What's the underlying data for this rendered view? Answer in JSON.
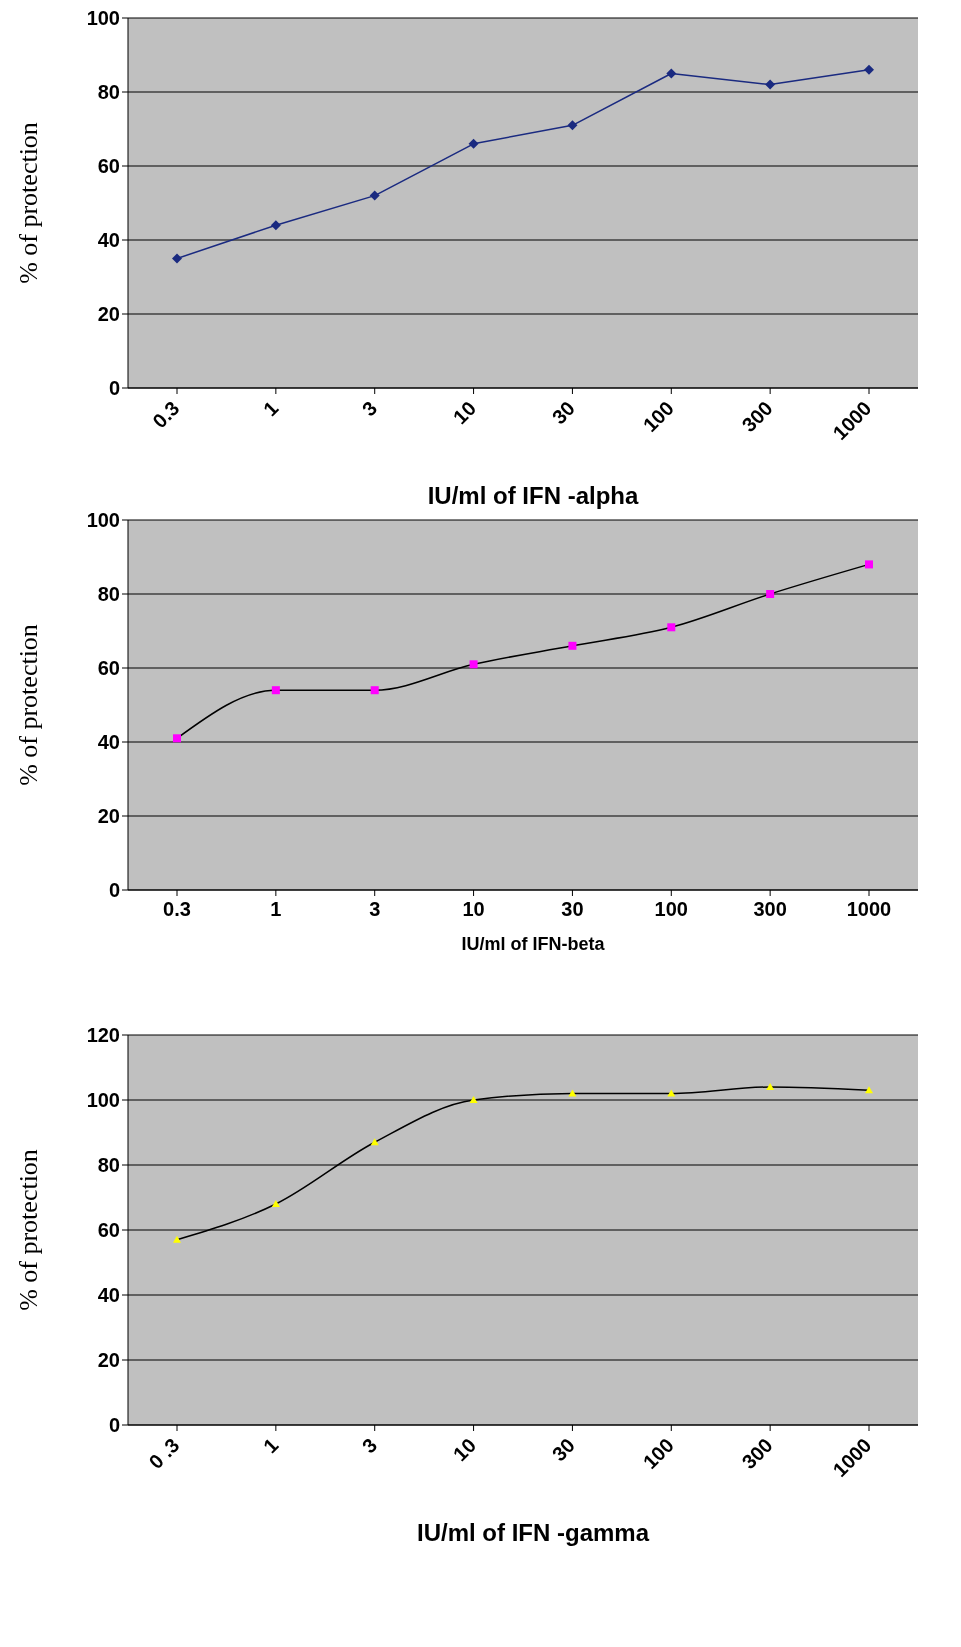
{
  "chart_data": [
    {
      "type": "line",
      "xlabel": "IU/ml of IFN -alpha",
      "ylabel": "% of protection",
      "categories": [
        "0.3",
        "1",
        "3",
        "10",
        "30",
        "100",
        "300",
        "1000"
      ],
      "series": [
        {
          "color": "#1a2a80",
          "values": [
            35,
            44,
            52,
            66,
            71,
            85,
            82,
            86
          ]
        }
      ],
      "ylim": [
        0,
        100
      ],
      "yticks": [
        0,
        20,
        40,
        60,
        80,
        100
      ],
      "grid": "y",
      "marker": "diamond",
      "legend": false
    },
    {
      "type": "line",
      "xlabel": "IU/ml of IFN-beta",
      "ylabel": "% of protection",
      "categories": [
        "0.3",
        "1",
        "3",
        "10",
        "30",
        "100",
        "300",
        "1000"
      ],
      "series": [
        {
          "color": "#ff00ff",
          "values": [
            41,
            54,
            54,
            61,
            66,
            71,
            80,
            88
          ]
        }
      ],
      "ylim": [
        0,
        100
      ],
      "yticks": [
        0,
        20,
        40,
        60,
        80,
        100
      ],
      "grid": "y",
      "marker": "square",
      "legend": false
    },
    {
      "type": "line",
      "xlabel": "IU/ml of IFN -gamma",
      "ylabel": "% of protection",
      "categories": [
        "0 .3",
        "1",
        "3",
        "10",
        "30",
        "100",
        "300",
        "1000"
      ],
      "series": [
        {
          "color": "#ffff00",
          "values": [
            57,
            68,
            87,
            100,
            102,
            102,
            104,
            103
          ]
        }
      ],
      "ylim": [
        0,
        120
      ],
      "yticks": [
        0,
        20,
        40,
        60,
        80,
        100,
        120
      ],
      "grid": "y",
      "marker": "triangle",
      "legend": false
    }
  ]
}
